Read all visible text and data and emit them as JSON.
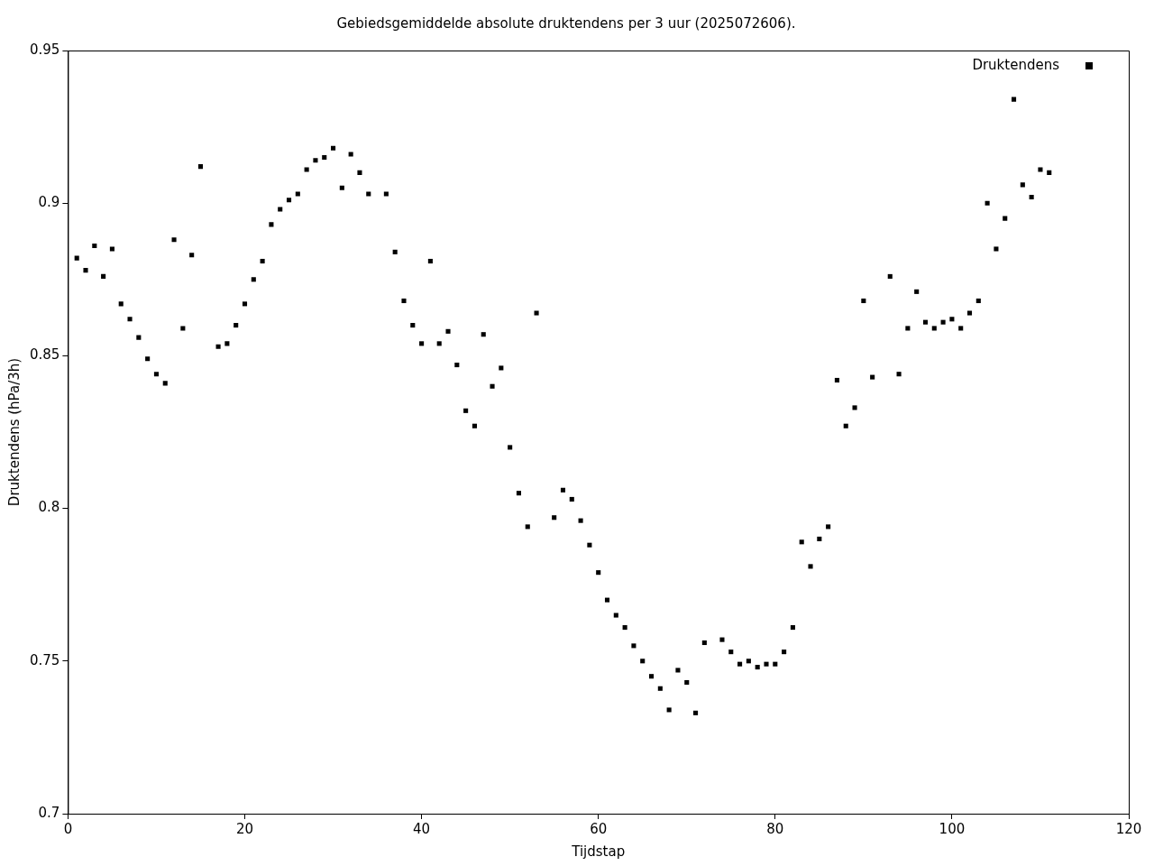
{
  "chart_data": {
    "type": "scatter",
    "title": "Gebiedsgemiddelde absolute druktendens per 3 uur (2025072606).",
    "xlabel": "Tijdstap",
    "ylabel": "Druktendens (hPa/3h)",
    "x": [
      1,
      2,
      3,
      4,
      5,
      6,
      7,
      8,
      9,
      10,
      11,
      12,
      13,
      14,
      15,
      17,
      18,
      19,
      20,
      21,
      22,
      23,
      24,
      25,
      26,
      27,
      28,
      29,
      30,
      31,
      32,
      33,
      34,
      36,
      37,
      38,
      39,
      40,
      41,
      42,
      43,
      44,
      45,
      46,
      47,
      48,
      49,
      50,
      51,
      52,
      53,
      55,
      56,
      57,
      58,
      59,
      60,
      61,
      62,
      63,
      64,
      65,
      66,
      67,
      68,
      69,
      70,
      71,
      72,
      74,
      75,
      76,
      77,
      78,
      79,
      80,
      81,
      82,
      83,
      84,
      85,
      86,
      87,
      88,
      89,
      90,
      91,
      93,
      94,
      95,
      96,
      97,
      98,
      99,
      100,
      101,
      102,
      103,
      104,
      105,
      106,
      107,
      108,
      109,
      110,
      111
    ],
    "series": [
      {
        "name": "Druktendens",
        "color": "#000000",
        "values": [
          0.882,
          0.878,
          0.886,
          0.876,
          0.885,
          0.867,
          0.862,
          0.856,
          0.849,
          0.844,
          0.841,
          0.888,
          0.859,
          0.883,
          0.912,
          0.853,
          0.854,
          0.86,
          0.867,
          0.875,
          0.881,
          0.893,
          0.898,
          0.901,
          0.903,
          0.911,
          0.914,
          0.915,
          0.918,
          0.905,
          0.916,
          0.91,
          0.903,
          0.903,
          0.884,
          0.868,
          0.86,
          0.854,
          0.881,
          0.854,
          0.858,
          0.847,
          0.832,
          0.827,
          0.857,
          0.84,
          0.846,
          0.82,
          0.805,
          0.794,
          0.864,
          0.797,
          0.806,
          0.803,
          0.796,
          0.788,
          0.779,
          0.77,
          0.765,
          0.761,
          0.755,
          0.75,
          0.745,
          0.741,
          0.734,
          0.747,
          0.743,
          0.733,
          0.756,
          0.757,
          0.753,
          0.749,
          0.75,
          0.748,
          0.749,
          0.749,
          0.753,
          0.761,
          0.789,
          0.781,
          0.79,
          0.794,
          0.842,
          0.827,
          0.833,
          0.868,
          0.843,
          0.876,
          0.844,
          0.859,
          0.871,
          0.861,
          0.859,
          0.861,
          0.862,
          0.859,
          0.864,
          0.868,
          0.9,
          0.885,
          0.895,
          0.934,
          0.906,
          0.902,
          0.911,
          0.91
        ]
      }
    ],
    "xlim": [
      0,
      120
    ],
    "xticks": [
      0,
      20,
      40,
      60,
      80,
      100,
      120
    ],
    "ylim": [
      0.7,
      0.95
    ],
    "yticks": [
      0.7,
      0.75,
      0.8,
      0.85,
      0.9,
      0.95
    ],
    "grid": false,
    "legend": "top right",
    "marker": "square"
  }
}
